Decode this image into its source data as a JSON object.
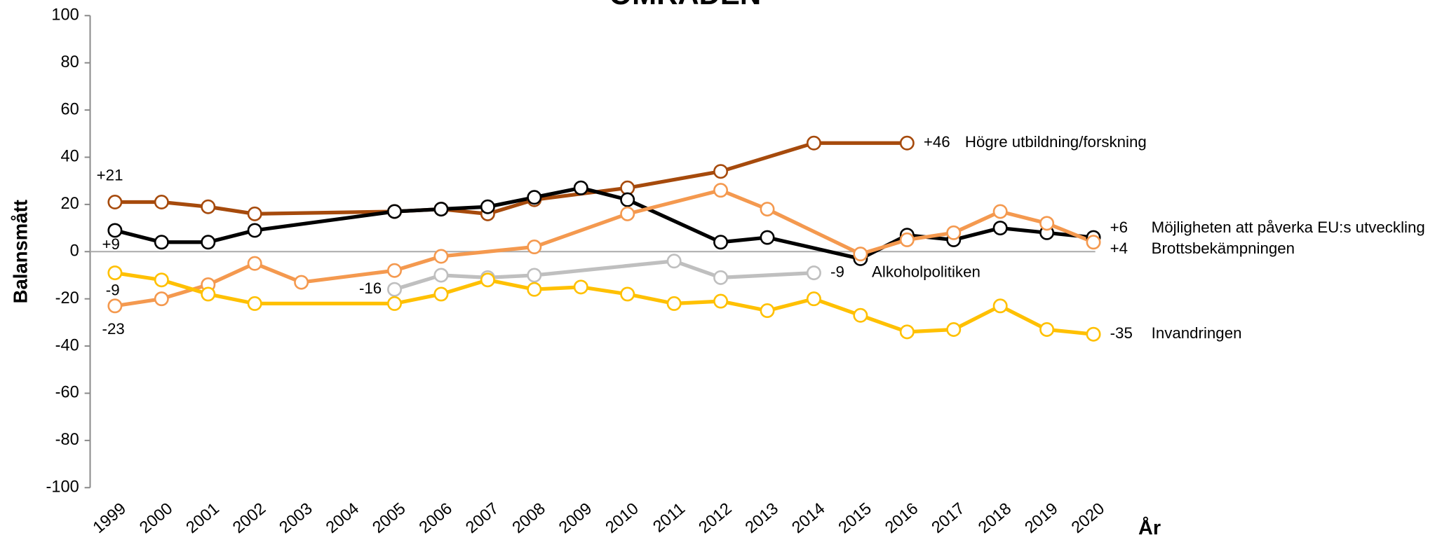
{
  "chart_data": {
    "type": "line",
    "title": "OMRÅDEN",
    "xlabel": "År",
    "ylabel": "Balansmått",
    "xlim": [
      1999,
      2020
    ],
    "xticks": [
      1999,
      2000,
      2001,
      2002,
      2003,
      2004,
      2005,
      2006,
      2007,
      2008,
      2009,
      2010,
      2011,
      2012,
      2013,
      2014,
      2015,
      2016,
      2017,
      2018,
      2019,
      2020
    ],
    "ylim": [
      -100,
      100
    ],
    "yticks": [
      -100,
      -80,
      -60,
      -40,
      -20,
      0,
      20,
      40,
      60,
      80,
      100
    ],
    "series": [
      {
        "name": "Högre utbildning/forskning",
        "color": "#a64a0c",
        "x": [
          1999,
          2000,
          2001,
          2002,
          2005,
          2006,
          2007,
          2008,
          2010,
          2012,
          2014,
          2016
        ],
        "values": [
          21,
          21,
          19,
          16,
          17,
          18,
          16,
          22,
          27,
          34,
          46,
          46
        ],
        "value_labels": [
          "+21",
          null,
          null,
          null,
          null,
          null,
          null,
          null,
          null,
          null,
          null,
          "+46"
        ]
      },
      {
        "name": "Möjligheten att påverka EU:s utveckling",
        "color": "#000000",
        "x": [
          1999,
          2000,
          2001,
          2002,
          2005,
          2006,
          2007,
          2008,
          2009,
          2010,
          2012,
          2013,
          2015,
          2016,
          2017,
          2018,
          2019,
          2020
        ],
        "values": [
          9,
          4,
          4,
          9,
          17,
          18,
          19,
          23,
          27,
          22,
          4,
          6,
          -3,
          7,
          5,
          10,
          8,
          6
        ],
        "value_labels": [
          "+9",
          null,
          null,
          null,
          null,
          null,
          null,
          null,
          null,
          null,
          null,
          null,
          null,
          null,
          null,
          null,
          null,
          "+6"
        ]
      },
      {
        "name": "Brottsbekämpningen",
        "color": "#f4994f",
        "x": [
          1999,
          2000,
          2001,
          2002,
          2003,
          2005,
          2006,
          2008,
          2010,
          2012,
          2013,
          2015,
          2016,
          2017,
          2018,
          2019,
          2020
        ],
        "values": [
          -23,
          -20,
          -14,
          -5,
          -13,
          -8,
          -2,
          2,
          16,
          26,
          18,
          -1,
          5,
          8,
          17,
          12,
          4
        ],
        "value_labels": [
          "-23",
          null,
          null,
          null,
          null,
          null,
          null,
          null,
          null,
          null,
          null,
          null,
          null,
          null,
          null,
          null,
          "+4"
        ]
      },
      {
        "name": "Alkoholpolitiken",
        "color": "#bfbfbf",
        "x": [
          2005,
          2006,
          2007,
          2008,
          2011,
          2012,
          2014
        ],
        "values": [
          -16,
          -10,
          -11,
          -10,
          -4,
          -11,
          -9
        ],
        "value_labels": [
          "-16",
          null,
          null,
          null,
          null,
          null,
          "-9"
        ]
      },
      {
        "name": "Invandringen",
        "color": "#ffc000",
        "x": [
          1999,
          2000,
          2001,
          2002,
          2005,
          2006,
          2007,
          2008,
          2009,
          2010,
          2011,
          2012,
          2013,
          2014,
          2015,
          2016,
          2017,
          2018,
          2019,
          2020
        ],
        "values": [
          -9,
          -12,
          -18,
          -22,
          -22,
          -18,
          -12,
          -16,
          -15,
          -18,
          -22,
          -21,
          -25,
          -20,
          -27,
          -34,
          -33,
          -23,
          -33,
          -35
        ],
        "value_labels": [
          "-9",
          null,
          null,
          null,
          null,
          null,
          null,
          null,
          null,
          null,
          null,
          null,
          null,
          null,
          null,
          null,
          null,
          null,
          null,
          "-35"
        ]
      }
    ]
  }
}
